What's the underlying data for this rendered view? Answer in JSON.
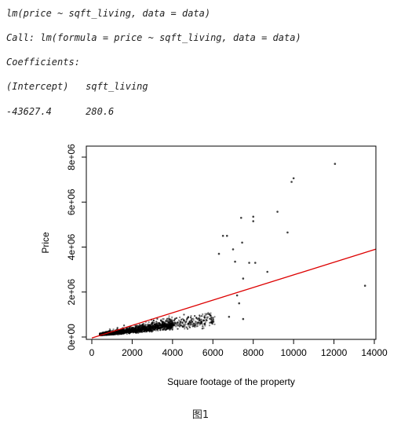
{
  "code": {
    "line1": "lm(price ~ sqft_living, data = data)",
    "line2": "Call: lm(formula = price ~ sqft_living, data = data)",
    "line3": "Coefficients:",
    "line4": "(Intercept)   sqft_living",
    "line5": "-43627.4      280.6"
  },
  "chart_data": {
    "type": "scatter",
    "xlabel": "Square footage of the property",
    "ylabel": "Price",
    "xlim": [
      0,
      14000
    ],
    "ylim": [
      0,
      8000000
    ],
    "x_ticks": [
      "0",
      "2000",
      "4000",
      "6000",
      "8000",
      "10000",
      "12000",
      "14000"
    ],
    "y_ticks": [
      "0e+00",
      "2e+06",
      "4e+06",
      "6e+06",
      "8e+06"
    ],
    "grid": false,
    "legend": "none",
    "point_color": "#000000",
    "fit_line_color": "#dd0000",
    "regression": {
      "intercept": -43627.4,
      "slope": 280.6
    },
    "points": [
      {
        "x": 12050,
        "y": 7700000
      },
      {
        "x": 10000,
        "y": 7060000
      },
      {
        "x": 9900,
        "y": 6900000
      },
      {
        "x": 9200,
        "y": 5570000
      },
      {
        "x": 8000,
        "y": 5350000
      },
      {
        "x": 8000,
        "y": 5150000
      },
      {
        "x": 7400,
        "y": 5300000
      },
      {
        "x": 9700,
        "y": 4650000
      },
      {
        "x": 6700,
        "y": 4500000
      },
      {
        "x": 6500,
        "y": 4500000
      },
      {
        "x": 7450,
        "y": 4200000
      },
      {
        "x": 13540,
        "y": 2280000
      },
      {
        "x": 7000,
        "y": 3900000
      },
      {
        "x": 7800,
        "y": 3300000
      },
      {
        "x": 8100,
        "y": 3300000
      },
      {
        "x": 8700,
        "y": 2900000
      },
      {
        "x": 6300,
        "y": 3700000
      },
      {
        "x": 7100,
        "y": 3350000
      },
      {
        "x": 7500,
        "y": 2600000
      },
      {
        "x": 7200,
        "y": 1850000
      },
      {
        "x": 7300,
        "y": 1500000
      },
      {
        "x": 7500,
        "y": 800000
      },
      {
        "x": 6800,
        "y": 900000
      }
    ]
  },
  "caption": "图1"
}
